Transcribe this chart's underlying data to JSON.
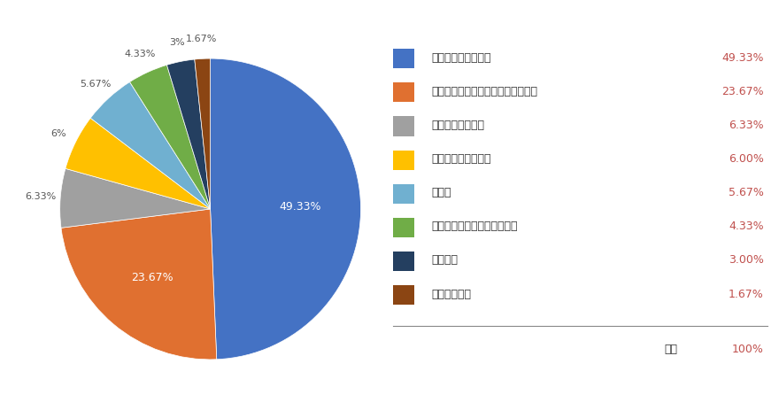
{
  "labels": [
    "社会人になったから",
    "友人・知人・同僚が使っていたから",
    "学校で配布された",
    "親が使っていたから",
    "その他",
    "友人・知人・同僚のすすめで",
    "就職活動",
    "親のすすめで"
  ],
  "values": [
    49.33,
    23.67,
    6.33,
    6.0,
    5.67,
    4.33,
    3.0,
    1.67
  ],
  "colors": [
    "#4472C4",
    "#E07030",
    "#A0A0A0",
    "#FFC000",
    "#70B0D0",
    "#70AD47",
    "#243F60",
    "#8B4513"
  ],
  "pct_labels": [
    "49.33%",
    "23.67%",
    "6.33%",
    "6%",
    "5.67%",
    "4.33%",
    "3%",
    "1.67%"
  ],
  "legend_pct": [
    "49.33%",
    "23.67%",
    "6.33%",
    "6.00%",
    "5.67%",
    "4.33%",
    "3.00%",
    "1.67%"
  ],
  "bg_color": "#FFFFFF",
  "total_label": "合計",
  "total_value": "100%"
}
